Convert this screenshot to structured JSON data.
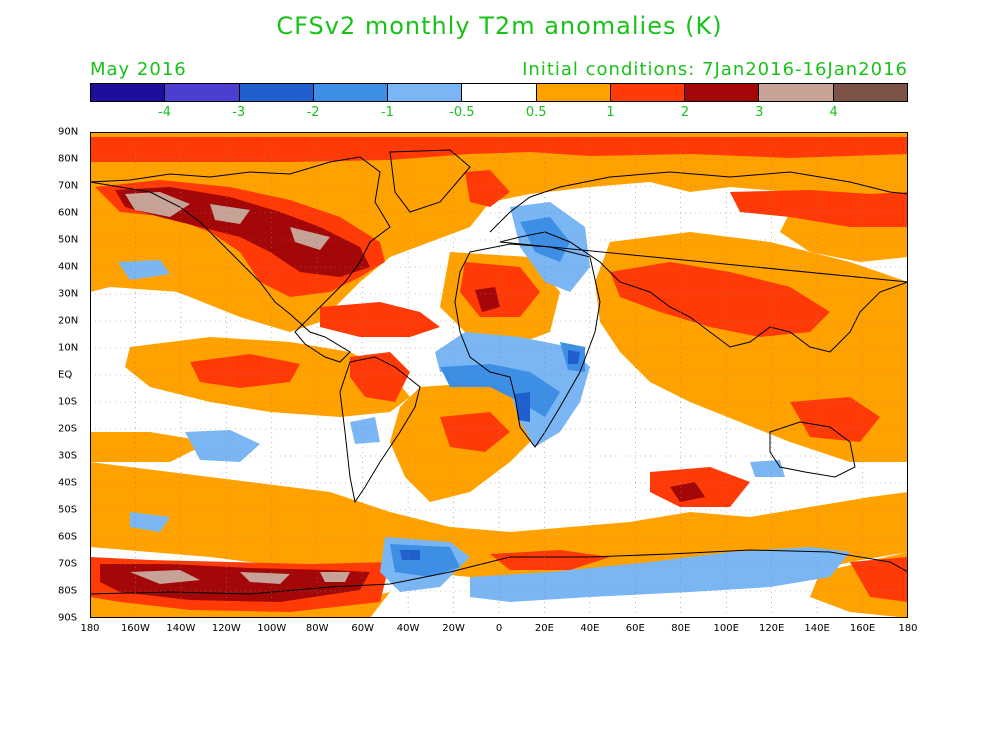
{
  "header": {
    "title": "CFSv2 monthly T2m anomalies (K)",
    "month_label": "May 2016",
    "init_label": "Initial conditions: 7Jan2016-16Jan2016"
  },
  "colorbar": {
    "colors": [
      "#1d0e9b",
      "#4a3fd1",
      "#1f5fce",
      "#3d8fe6",
      "#7ab6f3",
      "#ffffff",
      "#ffa200",
      "#ff3a06",
      "#a30707",
      "#c7a297",
      "#7d5347"
    ],
    "labels": [
      "-4",
      "-3",
      "-2",
      "-1",
      "-0.5",
      "0.5",
      "1",
      "2",
      "3",
      "4"
    ]
  },
  "map": {
    "lat_labels": [
      "90N",
      "80N",
      "70N",
      "60N",
      "50N",
      "40N",
      "30N",
      "20N",
      "10N",
      "EQ",
      "10S",
      "20S",
      "30S",
      "40S",
      "50S",
      "60S",
      "70S",
      "80S",
      "90S"
    ],
    "lon_labels": [
      "180",
      "160W",
      "140W",
      "120W",
      "100W",
      "80W",
      "60W",
      "40W",
      "20W",
      "0",
      "20E",
      "40E",
      "60E",
      "80E",
      "100E",
      "120E",
      "140E",
      "160E",
      "180"
    ]
  }
}
